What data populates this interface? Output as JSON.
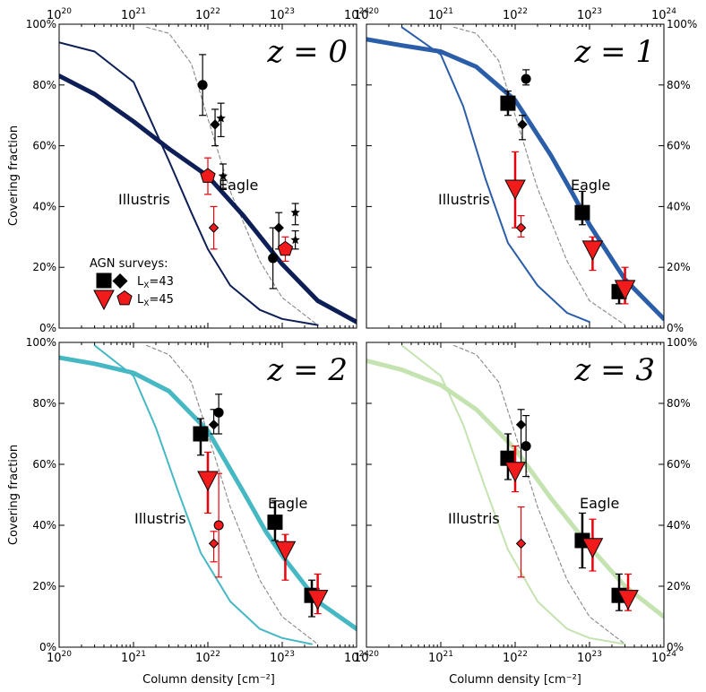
{
  "figure": {
    "xlabel": "Column density [cm⁻²]",
    "ylabel": "Covering fraction",
    "xscale": "log",
    "xlim": [
      1e+20,
      1e+24
    ],
    "ylim": [
      0,
      100
    ],
    "x_ticks": [
      {
        "value": 1e+20,
        "base": "10",
        "exp": "20"
      },
      {
        "value": 1e+21,
        "base": "10",
        "exp": "21"
      },
      {
        "value": 1e+22,
        "base": "10",
        "exp": "22"
      },
      {
        "value": 1e+23,
        "base": "10",
        "exp": "23"
      },
      {
        "value": 1e+24,
        "base": "10",
        "exp": "24"
      }
    ],
    "y_ticks": [
      {
        "value": 0,
        "label": "0%"
      },
      {
        "value": 20,
        "label": "20%"
      },
      {
        "value": 40,
        "label": "40%"
      },
      {
        "value": 60,
        "label": "60%"
      },
      {
        "value": 80,
        "label": "80%"
      },
      {
        "value": 100,
        "label": "100%"
      }
    ],
    "legend": {
      "title": "AGN surveys:",
      "row1": "L",
      "row1_sub": "X",
      "row1_val": "=43",
      "row2": "L",
      "row2_sub": "X",
      "row2_val": "=45"
    }
  },
  "chart_data": [
    {
      "type": "line",
      "panel": "top-left",
      "z_label": "z = 0",
      "color": "#0d1f56",
      "eagle_label": "Eagle",
      "illustris_label": "Illustris",
      "eagle_curve": {
        "x": [
          1e+20,
          3e+20,
          1e+21,
          3e+21,
          1e+22,
          3e+22,
          1e+23,
          3e+23,
          1e+24
        ],
        "y": [
          83,
          77,
          68,
          59,
          50,
          37,
          21,
          9,
          2
        ]
      },
      "illustris_curve": {
        "x": [
          1e+20,
          3e+20,
          1e+21,
          3e+21,
          6e+21,
          1e+22,
          2e+22,
          5e+22,
          1e+23,
          3e+23
        ],
        "y": [
          94,
          91,
          81,
          55,
          38,
          26,
          14,
          6,
          3,
          1
        ]
      },
      "reference_curve": {
        "x": [
          1.5e+21,
          3e+21,
          6e+21,
          1e+22,
          2e+22,
          5e+22,
          1e+23,
          3e+23
        ],
        "y": [
          99,
          97,
          87,
          69,
          45,
          22,
          10,
          1
        ]
      },
      "points_black": [
        {
          "marker": "circle",
          "x": 8.5e+21,
          "y": 80,
          "err": [
            70,
            90
          ]
        },
        {
          "marker": "diamond",
          "x": 1.25e+22,
          "y": 67,
          "err": [
            60,
            72
          ]
        },
        {
          "marker": "star",
          "x": 1.5e+22,
          "y": 69,
          "err": [
            63,
            74
          ]
        },
        {
          "marker": "star",
          "x": 1.6e+22,
          "y": 50,
          "err": [
            46,
            54
          ]
        },
        {
          "marker": "circle",
          "x": 7.5e+22,
          "y": 23,
          "err": [
            13,
            33
          ]
        },
        {
          "marker": "diamond",
          "x": 9e+22,
          "y": 33,
          "err": [
            26,
            38
          ]
        },
        {
          "marker": "star",
          "x": 1.5e+23,
          "y": 38,
          "err": [
            34,
            41
          ]
        },
        {
          "marker": "star",
          "x": 1.5e+23,
          "y": 29,
          "err": [
            26,
            32
          ]
        }
      ],
      "points_red": [
        {
          "marker": "pentagon",
          "x": 1e+22,
          "y": 50,
          "err": [
            44,
            56
          ]
        },
        {
          "marker": "diamond",
          "x": 1.2e+22,
          "y": 33,
          "err": [
            26,
            40
          ]
        },
        {
          "marker": "pentagon",
          "x": 1.1e+23,
          "y": 26,
          "err": [
            22,
            30
          ]
        }
      ]
    },
    {
      "type": "line",
      "panel": "top-right",
      "z_label": "z = 1",
      "color": "#2b5ea8",
      "eagle_label": "Eagle",
      "illustris_label": "Illustris",
      "eagle_curve": {
        "x": [
          1e+20,
          3e+20,
          1e+21,
          3e+21,
          1e+22,
          3e+22,
          6e+22,
          1e+23,
          3e+23,
          1e+24
        ],
        "y": [
          95,
          93,
          91,
          86,
          75,
          57,
          44,
          34,
          16,
          3
        ]
      },
      "illustris_curve": {
        "x": [
          3e+20,
          1e+21,
          2e+21,
          4e+21,
          8e+21,
          2e+22,
          5e+22,
          1e+23
        ],
        "y": [
          99,
          90,
          73,
          49,
          28,
          14,
          5,
          2
        ]
      },
      "reference_curve": {
        "x": [
          1.5e+21,
          3e+21,
          6e+21,
          1e+22,
          2e+22,
          5e+22,
          1e+23,
          3e+23
        ],
        "y": [
          99,
          97,
          88,
          70,
          46,
          22,
          9,
          1
        ]
      },
      "points_black": [
        {
          "marker": "square",
          "x": 8e+21,
          "y": 74,
          "err": [
            70,
            78
          ]
        },
        {
          "marker": "circle",
          "x": 1.4e+22,
          "y": 82,
          "err": [
            80,
            85
          ]
        },
        {
          "marker": "diamond",
          "x": 1.25e+22,
          "y": 67,
          "err": [
            62,
            70
          ]
        },
        {
          "marker": "square",
          "x": 8e+22,
          "y": 38,
          "err": [
            34,
            45
          ]
        },
        {
          "marker": "square",
          "x": 2.5e+23,
          "y": 12,
          "err": [
            8,
            15
          ]
        }
      ],
      "points_red": [
        {
          "marker": "triangle-down",
          "x": 1e+22,
          "y": 46,
          "err": [
            33,
            58
          ]
        },
        {
          "marker": "diamond",
          "x": 1.2e+22,
          "y": 33,
          "err": [
            30,
            37
          ]
        },
        {
          "marker": "triangle-down",
          "x": 1.1e+23,
          "y": 26,
          "err": [
            19,
            30
          ]
        },
        {
          "marker": "triangle-down",
          "x": 3e+23,
          "y": 13,
          "err": [
            8,
            20
          ]
        }
      ]
    },
    {
      "type": "line",
      "panel": "bottom-left",
      "z_label": "z = 2",
      "color": "#46b8c4",
      "eagle_label": "Eagle",
      "illustris_label": "Illustris",
      "eagle_curve": {
        "x": [
          1e+20,
          3e+20,
          1e+21,
          3e+21,
          1e+22,
          3e+22,
          6e+22,
          1e+23,
          3e+23,
          1e+24
        ],
        "y": [
          95,
          93,
          90,
          84,
          71,
          51,
          38,
          30,
          15,
          6
        ]
      },
      "illustris_curve": {
        "x": [
          3e+20,
          1e+21,
          2e+21,
          4e+21,
          8e+21,
          2e+22,
          5e+22,
          1e+23,
          2.5e+23
        ],
        "y": [
          99,
          89,
          72,
          51,
          31,
          15,
          6,
          3,
          1
        ]
      },
      "reference_curve": {
        "x": [
          1.5e+21,
          3e+21,
          6e+21,
          1e+22,
          2e+22,
          5e+22,
          1e+23,
          3e+23
        ],
        "y": [
          99,
          96,
          87,
          70,
          46,
          22,
          10,
          1
        ]
      },
      "points_black": [
        {
          "marker": "square",
          "x": 8e+21,
          "y": 70,
          "err": [
            63,
            75
          ]
        },
        {
          "marker": "diamond",
          "x": 1.2e+22,
          "y": 73,
          "err": [
            70,
            78
          ]
        },
        {
          "marker": "circle",
          "x": 1.4e+22,
          "y": 77,
          "err": [
            70,
            83
          ]
        },
        {
          "marker": "square",
          "x": 8e+22,
          "y": 41,
          "err": [
            35,
            48
          ]
        },
        {
          "marker": "square",
          "x": 2.5e+23,
          "y": 17,
          "err": [
            10,
            22
          ]
        }
      ],
      "points_red": [
        {
          "marker": "triangle-down",
          "x": 1e+22,
          "y": 55,
          "err": [
            44,
            64
          ]
        },
        {
          "marker": "diamond",
          "x": 1.2e+22,
          "y": 34,
          "err": [
            28,
            38
          ]
        },
        {
          "marker": "circle",
          "x": 1.4e+22,
          "y": 40,
          "err": [
            23,
            57
          ]
        },
        {
          "marker": "triangle-down",
          "x": 1.1e+23,
          "y": 32,
          "err": [
            22,
            37
          ]
        },
        {
          "marker": "triangle-down",
          "x": 3e+23,
          "y": 16,
          "err": [
            11,
            24
          ]
        }
      ]
    },
    {
      "type": "line",
      "panel": "bottom-right",
      "z_label": "z = 3",
      "color": "#c4e3b0",
      "eagle_label": "Eagle",
      "illustris_label": "Illustris",
      "eagle_curve": {
        "x": [
          1e+20,
          3e+20,
          1e+21,
          3e+21,
          1e+22,
          3e+22,
          1e+23,
          3e+23,
          1e+24
        ],
        "y": [
          94,
          91,
          86,
          78,
          65,
          49,
          33,
          20,
          10
        ]
      },
      "illustris_curve": {
        "x": [
          3e+20,
          1e+21,
          2e+21,
          4e+21,
          8e+21,
          2e+22,
          5e+22,
          1e+23,
          3e+23
        ],
        "y": [
          99,
          89,
          73,
          52,
          32,
          15,
          6,
          3,
          1
        ]
      },
      "reference_curve": {
        "x": [
          1.5e+21,
          3e+21,
          6e+21,
          1e+22,
          2e+22,
          5e+22,
          1e+23,
          3e+23
        ],
        "y": [
          99,
          96,
          87,
          70,
          46,
          22,
          10,
          1
        ]
      },
      "points_black": [
        {
          "marker": "square",
          "x": 8e+21,
          "y": 62,
          "err": [
            55,
            70
          ]
        },
        {
          "marker": "diamond",
          "x": 1.2e+22,
          "y": 73,
          "err": [
            60,
            78
          ]
        },
        {
          "marker": "circle",
          "x": 1.4e+22,
          "y": 66,
          "err": [
            56,
            76
          ]
        },
        {
          "marker": "square",
          "x": 8e+22,
          "y": 35,
          "err": [
            26,
            44
          ]
        },
        {
          "marker": "square",
          "x": 2.5e+23,
          "y": 17,
          "err": [
            12,
            24
          ]
        }
      ],
      "points_red": [
        {
          "marker": "triangle-down",
          "x": 1e+22,
          "y": 58,
          "err": [
            51,
            66
          ]
        },
        {
          "marker": "diamond",
          "x": 1.2e+22,
          "y": 34,
          "err": [
            23,
            46
          ]
        },
        {
          "marker": "triangle-down",
          "x": 1.1e+23,
          "y": 33,
          "err": [
            25,
            42
          ]
        },
        {
          "marker": "triangle-down",
          "x": 3.3e+23,
          "y": 16,
          "err": [
            12,
            24
          ]
        }
      ]
    }
  ]
}
